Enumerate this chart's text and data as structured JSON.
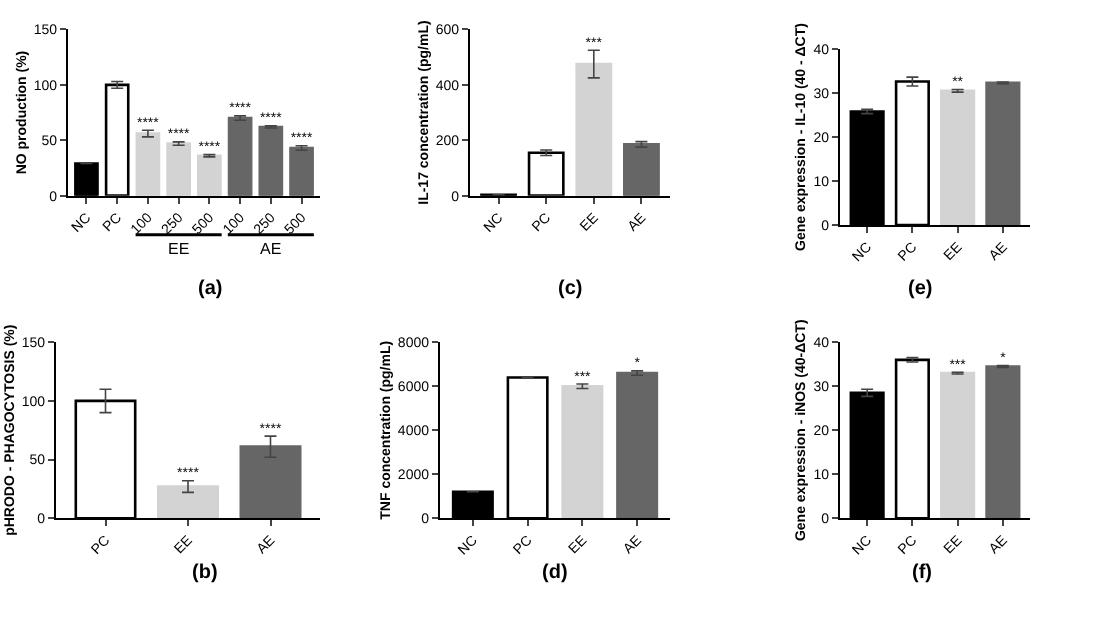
{
  "chart_data": [
    {
      "type": "bar",
      "xlabel": "(a)",
      "ylabel": "NO production (%)",
      "categories": [
        "NC",
        "PC",
        "100",
        "250",
        "500",
        "100",
        "250",
        "500"
      ],
      "values": [
        29,
        100,
        56,
        47,
        36,
        70,
        62,
        43
      ],
      "errors": [
        null,
        3,
        3,
        1.5,
        1,
        2,
        1,
        2
      ],
      "colors": [
        "#000000",
        "#ffffff",
        "#d3d3d3",
        "#d3d3d3",
        "#d3d3d3",
        "#666666",
        "#666666",
        "#666666"
      ],
      "value_labels": [
        null,
        null,
        "****",
        "****",
        "****",
        "****",
        "****",
        "****"
      ],
      "annotations": [
        "EE",
        "AE"
      ],
      "ylim": [
        0,
        150
      ],
      "yticks": [
        0,
        50,
        100,
        150
      ]
    },
    {
      "type": "bar",
      "xlabel": "(c)",
      "ylabel": "IL-17 concentration (pg/mL)",
      "categories": [
        "NC",
        "PC",
        "EE",
        "AE"
      ],
      "values": [
        3,
        155,
        475,
        185
      ],
      "errors": [
        null,
        10,
        50,
        10
      ],
      "colors": [
        "#000000",
        "#ffffff",
        "#d3d3d3",
        "#666666"
      ],
      "value_labels": [
        null,
        null,
        "***",
        null
      ],
      "ylim": [
        0,
        600
      ],
      "yticks": [
        0,
        200,
        400,
        600
      ]
    },
    {
      "type": "bar",
      "xlabel": "(e)",
      "ylabel": "Gene expression - IL-10 (40 - ΔCT)",
      "categories": [
        "NC",
        "PC",
        "EE",
        "AE"
      ],
      "values": [
        25.8,
        32.6,
        30.5,
        32.3
      ],
      "errors": [
        0.5,
        1,
        0.3,
        0.2
      ],
      "colors": [
        "#000000",
        "#ffffff",
        "#d3d3d3",
        "#666666"
      ],
      "value_labels": [
        null,
        null,
        "**",
        null
      ],
      "ylim": [
        0,
        40
      ],
      "yticks": [
        0,
        10,
        20,
        30,
        40
      ]
    },
    {
      "type": "bar",
      "xlabel": "(b)",
      "ylabel": "pHRODO - PHAGOCYTOSIS (%)",
      "categories": [
        "PC",
        "EE",
        "AE"
      ],
      "values": [
        100,
        27,
        61
      ],
      "errors": [
        10,
        5,
        9
      ],
      "colors": [
        "#ffffff",
        "#d3d3d3",
        "#666666"
      ],
      "value_labels": [
        null,
        "****",
        "****"
      ],
      "ylim": [
        0,
        150
      ],
      "yticks": [
        0,
        50,
        100,
        150
      ]
    },
    {
      "type": "bar",
      "xlabel": "(d)",
      "ylabel": "TNF concentration (pg/mL)",
      "categories": [
        "NC",
        "PC",
        "EE",
        "AE"
      ],
      "values": [
        1200,
        6400,
        6000,
        6600
      ],
      "errors": [
        null,
        null,
        100,
        100
      ],
      "colors": [
        "#000000",
        "#ffffff",
        "#d3d3d3",
        "#666666"
      ],
      "value_labels": [
        null,
        null,
        "***",
        "*"
      ],
      "ylim": [
        0,
        8000
      ],
      "yticks": [
        0,
        2000,
        4000,
        6000,
        8000
      ]
    },
    {
      "type": "bar",
      "xlabel": "(f)",
      "ylabel": "Gene expression - iNOS (40-ΔCT)",
      "categories": [
        "NC",
        "PC",
        "EE",
        "AE"
      ],
      "values": [
        28.5,
        36,
        33,
        34.5
      ],
      "errors": [
        0.8,
        0.5,
        0.2,
        0.2
      ],
      "colors": [
        "#000000",
        "#ffffff",
        "#d3d3d3",
        "#666666"
      ],
      "value_labels": [
        null,
        null,
        "***",
        "*"
      ],
      "ylim": [
        0,
        40
      ],
      "yticks": [
        0,
        10,
        20,
        30,
        40
      ]
    }
  ]
}
